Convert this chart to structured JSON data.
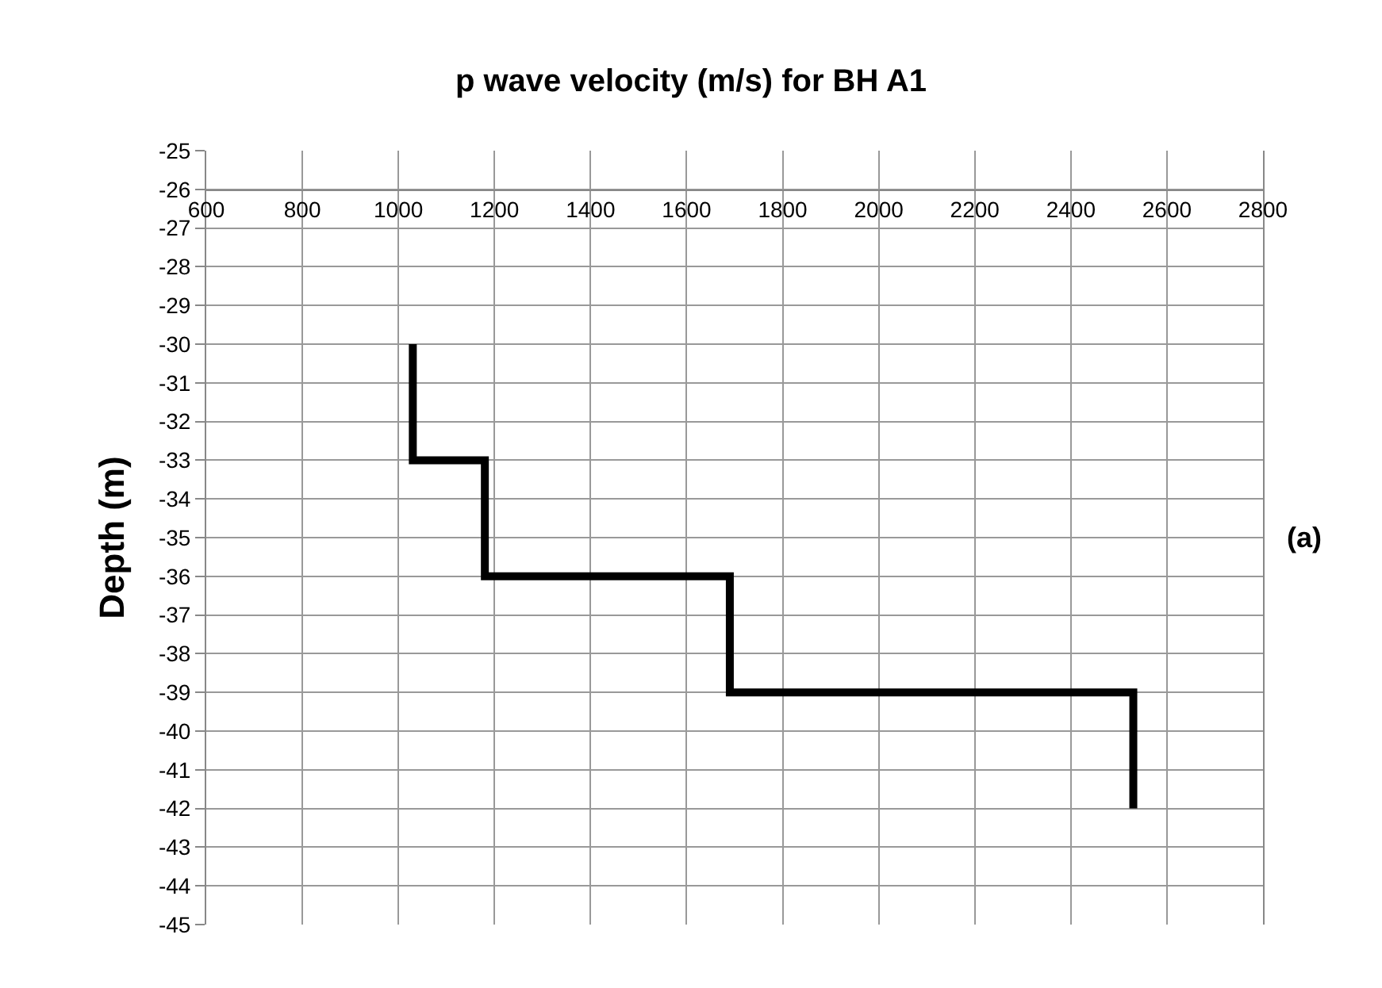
{
  "chart_data": {
    "type": "line",
    "title": "p wave velocity (m/s) for BH A1",
    "ylabel": "Depth (m)",
    "annotations": [
      "(a)"
    ],
    "series": [
      {
        "color": "#000000",
        "x": [
          1030,
          1030,
          1180,
          1180,
          1690,
          1690,
          2530,
          2530
        ],
        "values": [
          -30,
          -33,
          -33,
          -36,
          -36,
          -39,
          -39,
          -42
        ]
      }
    ],
    "xlim": [
      600,
      2800
    ],
    "xticks": [
      600,
      800,
      1000,
      1200,
      1400,
      1600,
      1800,
      2000,
      2200,
      2400,
      2600,
      2800
    ],
    "ylim": [
      -45,
      -25
    ],
    "yticks": [
      -25,
      -26,
      -27,
      -28,
      -29,
      -30,
      -31,
      -32,
      -33,
      -34,
      -35,
      -36,
      -37,
      -38,
      -39,
      -40,
      -41,
      -42,
      -43,
      -44,
      -45
    ],
    "grid": true,
    "marker": "none",
    "line_style": "solid"
  }
}
